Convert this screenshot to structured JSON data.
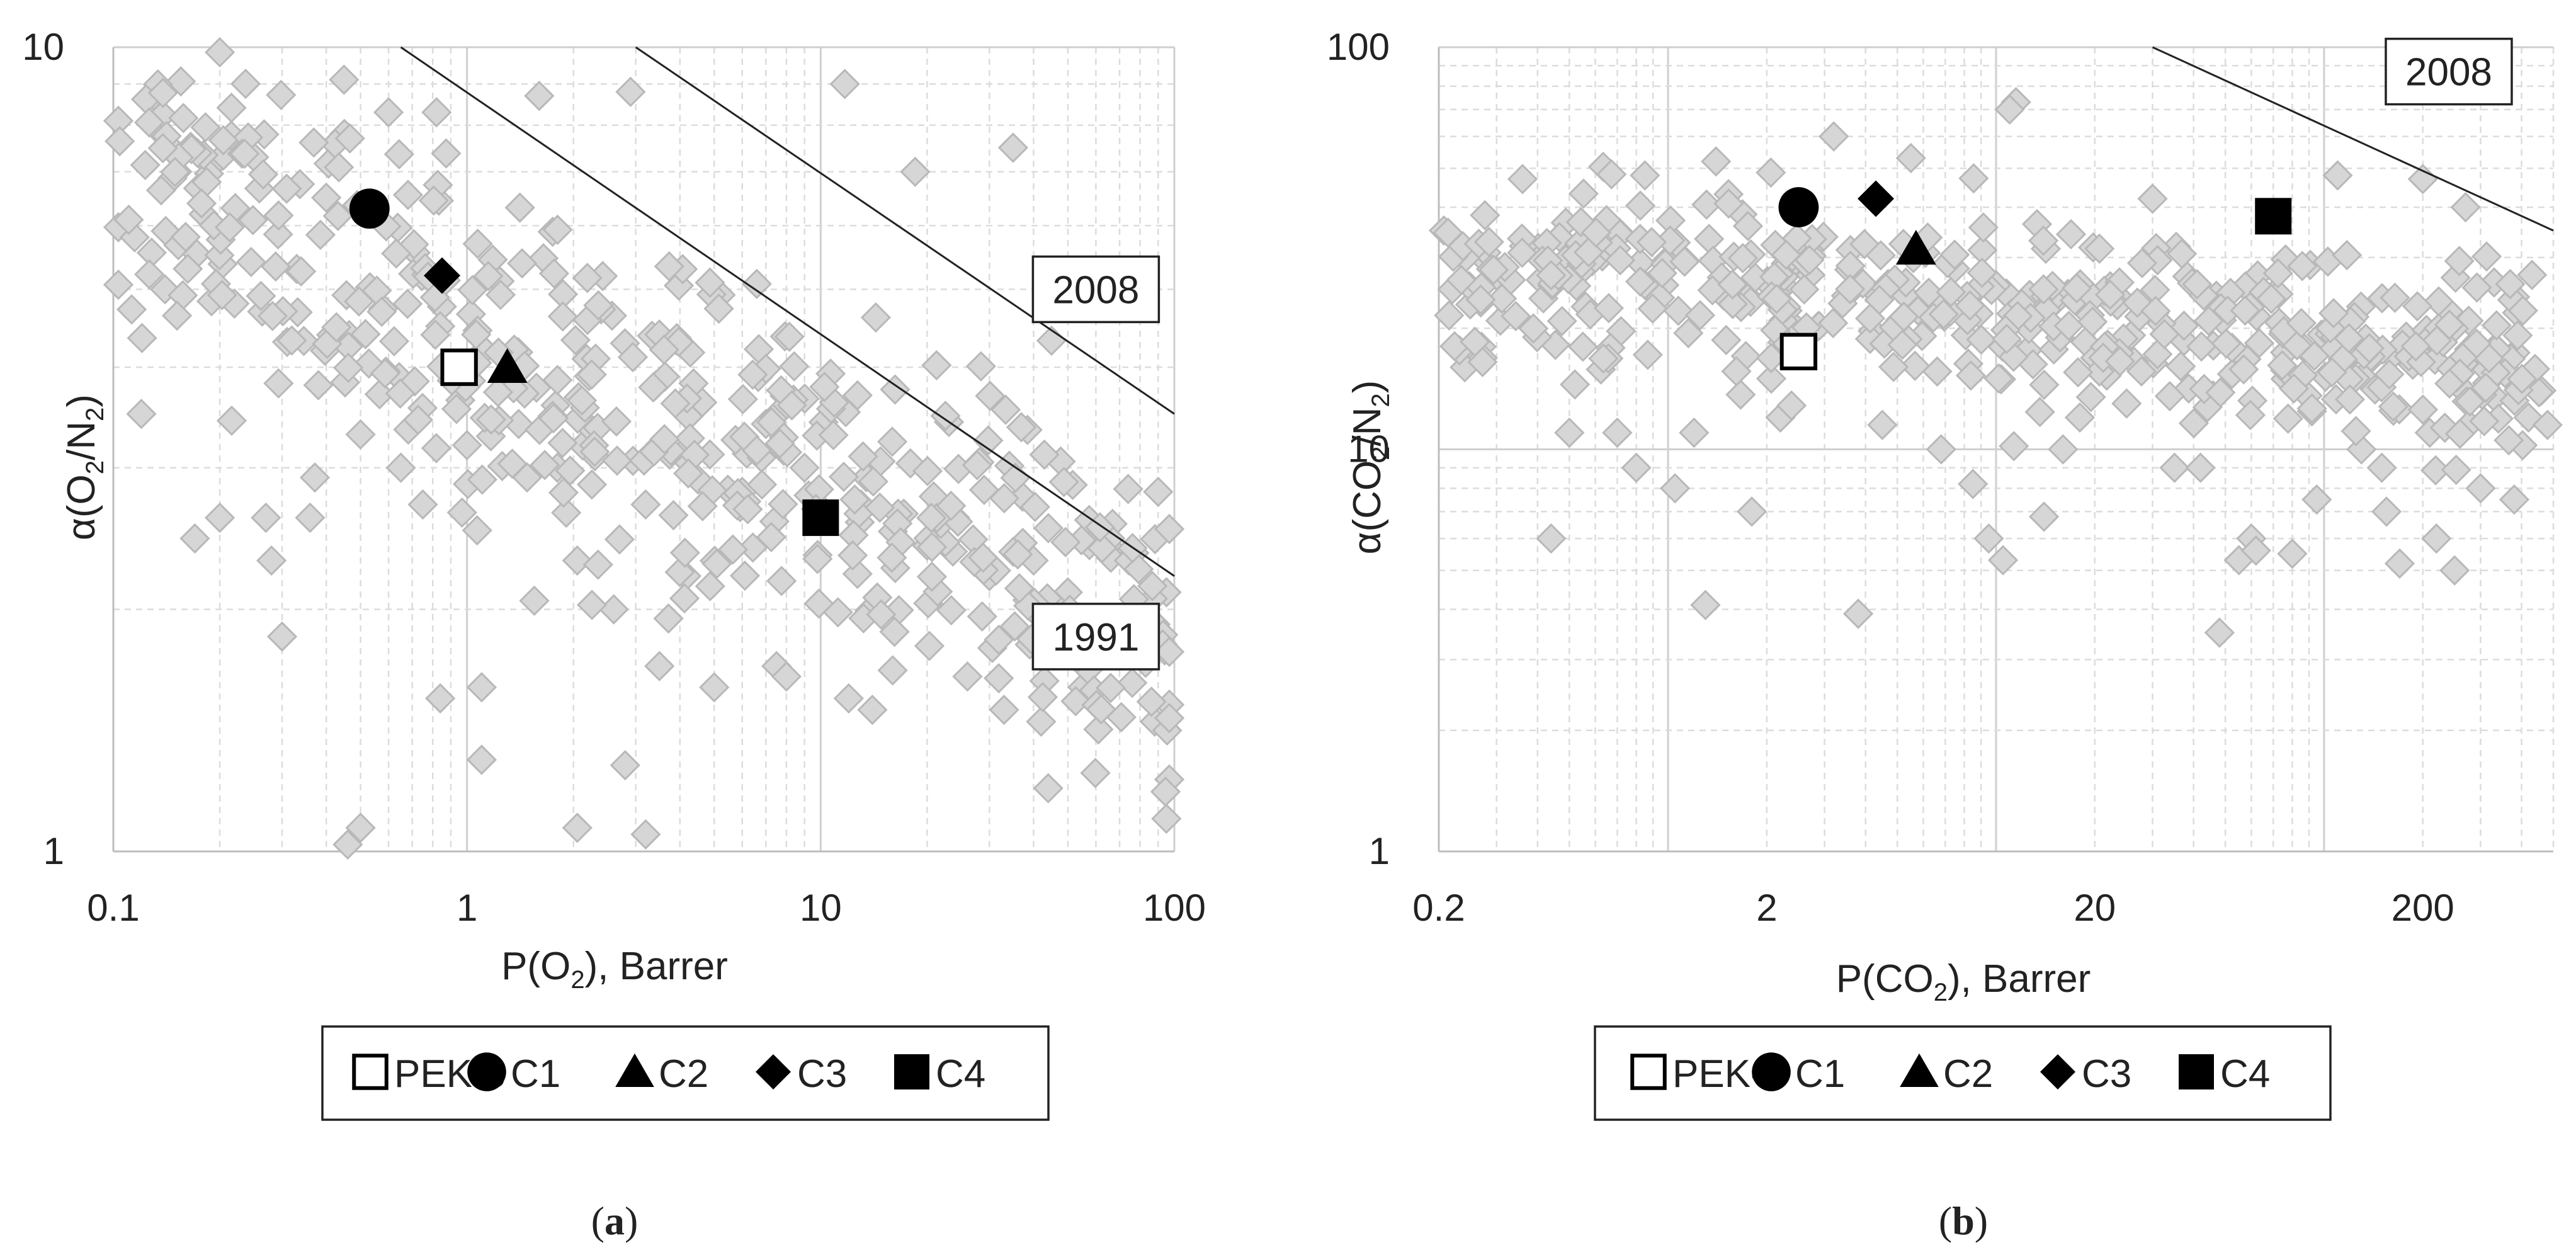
{
  "chart_data": [
    {
      "type": "scatter",
      "panel_label": "a",
      "xlabel_parts": [
        "P(O",
        "2",
        "), Barrer"
      ],
      "ylabel_parts": [
        "α(O",
        "2",
        "/N",
        "2",
        ")"
      ],
      "x_log": true,
      "y_log": true,
      "xlim": [
        0.1,
        100
      ],
      "ylim": [
        1,
        10
      ],
      "x_ticks": [
        {
          "v": 0.1,
          "label": "0.1"
        },
        {
          "v": 1,
          "label": "1"
        },
        {
          "v": 10,
          "label": "10"
        },
        {
          "v": 100,
          "label": "100"
        }
      ],
      "y_ticks": [
        {
          "v": 1,
          "label": "1"
        },
        {
          "v": 10,
          "label": "10"
        }
      ],
      "grid": true,
      "legend_position": "bottom",
      "legend": [
        {
          "label": "PEK-c",
          "marker": "square-open"
        },
        {
          "label": "C1",
          "marker": "circle"
        },
        {
          "label": "C2",
          "marker": "triangle"
        },
        {
          "label": "C3",
          "marker": "diamond"
        },
        {
          "label": "C4",
          "marker": "square"
        }
      ],
      "series": [
        {
          "name": "PEK-c",
          "marker": "square-open",
          "points": [
            [
              0.95,
              4.0
            ]
          ]
        },
        {
          "name": "C1",
          "marker": "circle",
          "points": [
            [
              0.53,
              6.3
            ]
          ]
        },
        {
          "name": "C2",
          "marker": "triangle",
          "points": [
            [
              1.3,
              4.0
            ]
          ]
        },
        {
          "name": "C3",
          "marker": "diamond",
          "points": [
            [
              0.85,
              5.2
            ]
          ]
        },
        {
          "name": "C4",
          "marker": "square",
          "points": [
            [
              10,
              2.6
            ]
          ]
        }
      ],
      "upper_bounds": [
        {
          "label": "2008",
          "points": [
            [
              3.0,
              10
            ],
            [
              100,
              3.5
            ]
          ],
          "label_at": [
            60,
            5.0
          ]
        },
        {
          "label": "1991",
          "points": [
            [
              0.65,
              10
            ],
            [
              100,
              2.2
            ]
          ],
          "label_at": [
            60,
            1.85
          ]
        }
      ],
      "background_color": "#d6d6d6",
      "background_generator": {
        "x": [
          0.1,
          100
        ],
        "y_center": 3.6,
        "slope": -0.2,
        "seed": 11
      },
      "background_points": [
        [
          0.1,
          8.1
        ],
        [
          0.13,
          8.7
        ],
        [
          0.2,
          10
        ],
        [
          0.25,
          7.3
        ],
        [
          0.45,
          7.8
        ],
        [
          0.6,
          8.3
        ],
        [
          0.82,
          8.3
        ],
        [
          1.6,
          8.7
        ],
        [
          2.9,
          8.8
        ],
        [
          11.7,
          9.0
        ],
        [
          35,
          7.5
        ],
        [
          18.5,
          7.0
        ],
        [
          0.14,
          5.0
        ],
        [
          0.12,
          3.5
        ],
        [
          0.17,
          2.45
        ],
        [
          0.2,
          2.6
        ],
        [
          0.27,
          2.6
        ],
        [
          0.36,
          2.6
        ],
        [
          0.28,
          2.3
        ],
        [
          0.3,
          1.85
        ],
        [
          0.75,
          2.7
        ],
        [
          0.84,
          1.55
        ],
        [
          1.1,
          1.6
        ],
        [
          1.55,
          2.05
        ],
        [
          2.05,
          2.3
        ],
        [
          2.6,
          2.0
        ],
        [
          3.2,
          2.7
        ],
        [
          3.5,
          1.7
        ],
        [
          5.0,
          1.6
        ],
        [
          7.5,
          1.7
        ],
        [
          8.0,
          1.65
        ],
        [
          1.1,
          1.3
        ],
        [
          2.8,
          1.28
        ],
        [
          2.05,
          1.07
        ],
        [
          3.2,
          1.05
        ],
        [
          0.5,
          1.07
        ],
        [
          0.46,
          1.02
        ],
        [
          12,
          1.55
        ],
        [
          14,
          1.5
        ],
        [
          26,
          1.65
        ],
        [
          33,
          1.5
        ],
        [
          42,
          1.45
        ],
        [
          55,
          1.6
        ],
        [
          70,
          1.75
        ],
        [
          88,
          1.45
        ],
        [
          95,
          2.1
        ],
        [
          90,
          2.8
        ],
        [
          75,
          2.0
        ],
        [
          0.4,
          6.5
        ],
        [
          0.33,
          5.3
        ],
        [
          0.22,
          4.8
        ],
        [
          0.18,
          6.2
        ],
        [
          0.31,
          4.3
        ],
        [
          0.38,
          3.8
        ],
        [
          0.5,
          3.3
        ],
        [
          0.65,
          3.0
        ],
        [
          1.0,
          3.2
        ],
        [
          1.4,
          3.4
        ],
        [
          1.8,
          3.0
        ],
        [
          2.3,
          3.1
        ],
        [
          3.5,
          3.2
        ],
        [
          4.5,
          2.9
        ],
        [
          6.0,
          2.8
        ],
        [
          7.0,
          3.4
        ],
        [
          9.0,
          3.0
        ],
        [
          13,
          2.7
        ],
        [
          16,
          2.5
        ],
        [
          20,
          2.4
        ],
        [
          24,
          2.6
        ],
        [
          30,
          2.2
        ],
        [
          40,
          2.3
        ],
        [
          50,
          2.1
        ],
        [
          65,
          2.4
        ]
      ]
    },
    {
      "type": "scatter",
      "panel_label": "b",
      "xlabel_parts": [
        "P(CO",
        "2",
        "), Barrer"
      ],
      "ylabel_parts": [
        "α(CO",
        "2",
        "/N",
        "2",
        ")"
      ],
      "x_log": true,
      "y_log": true,
      "xlim": [
        0.2,
        500
      ],
      "ylim": [
        1,
        100
      ],
      "x_ticks": [
        {
          "v": 0.2,
          "label": "0.2"
        },
        {
          "v": 2,
          "label": "2"
        },
        {
          "v": 20,
          "label": "20"
        },
        {
          "v": 200,
          "label": "200"
        }
      ],
      "y_ticks": [
        {
          "v": 1,
          "label": "1"
        },
        {
          "v": 10,
          "label": "10"
        },
        {
          "v": 100,
          "label": "100"
        }
      ],
      "grid": true,
      "legend_position": "bottom",
      "legend": [
        {
          "label": "PEK-c",
          "marker": "square-open"
        },
        {
          "label": "C1",
          "marker": "circle"
        },
        {
          "label": "C2",
          "marker": "triangle"
        },
        {
          "label": "C3",
          "marker": "diamond"
        },
        {
          "label": "C4",
          "marker": "square"
        }
      ],
      "series": [
        {
          "name": "PEK-c",
          "marker": "square-open",
          "points": [
            [
              2.5,
              17.5
            ]
          ]
        },
        {
          "name": "C1",
          "marker": "circle",
          "points": [
            [
              2.5,
              40
            ]
          ]
        },
        {
          "name": "C2",
          "marker": "triangle",
          "points": [
            [
              5.7,
              31.5
            ]
          ]
        },
        {
          "name": "C3",
          "marker": "diamond",
          "points": [
            [
              4.3,
              42
            ]
          ]
        },
        {
          "name": "C4",
          "marker": "square",
          "points": [
            [
              70,
              38
            ]
          ]
        }
      ],
      "upper_bounds": [
        {
          "label": "2008",
          "points": [
            [
              30,
              100
            ],
            [
              500,
              35
            ]
          ],
          "label_at": [
            240,
            87
          ]
        }
      ],
      "background_color": "#d6d6d6",
      "background_generator": {
        "x": [
          0.2,
          500
        ],
        "y_center": 22,
        "slope": -0.08,
        "seed": 29
      },
      "background_points": [
        [
          0.2,
          35
        ],
        [
          0.22,
          25
        ],
        [
          0.24,
          16
        ],
        [
          0.27,
          18
        ],
        [
          0.3,
          27
        ],
        [
          0.36,
          47
        ],
        [
          0.44,
          6.0
        ],
        [
          0.5,
          11
        ],
        [
          0.52,
          14.5
        ],
        [
          0.55,
          18
        ],
        [
          0.7,
          11
        ],
        [
          0.8,
          9.0
        ],
        [
          0.85,
          48
        ],
        [
          1.05,
          8.0
        ],
        [
          1.2,
          11
        ],
        [
          1.3,
          4.1
        ],
        [
          1.4,
          52
        ],
        [
          1.8,
          7.0
        ],
        [
          2.2,
          12
        ],
        [
          3.2,
          60
        ],
        [
          3.8,
          3.9
        ],
        [
          4.5,
          11.5
        ],
        [
          5.5,
          53
        ],
        [
          6.8,
          10
        ],
        [
          8.5,
          8.2
        ],
        [
          9.5,
          6.0
        ],
        [
          10.5,
          5.3
        ],
        [
          11.5,
          73
        ],
        [
          11,
          70
        ],
        [
          14,
          6.8
        ],
        [
          16,
          10
        ],
        [
          18,
          12
        ],
        [
          25,
          13
        ],
        [
          30,
          42
        ],
        [
          35,
          9.0
        ],
        [
          42,
          9.0
        ],
        [
          48,
          3.5
        ],
        [
          55,
          5.3
        ],
        [
          60,
          6.0
        ],
        [
          62,
          5.6
        ],
        [
          80,
          5.5
        ],
        [
          95,
          7.5
        ],
        [
          110,
          48
        ],
        [
          130,
          10
        ],
        [
          150,
          9.0
        ],
        [
          155,
          7.0
        ],
        [
          170,
          5.2
        ],
        [
          200,
          47
        ],
        [
          210,
          11
        ],
        [
          220,
          6.0
        ],
        [
          250,
          5.0
        ],
        [
          270,
          40
        ],
        [
          300,
          8.0
        ],
        [
          330,
          26
        ],
        [
          350,
          17
        ],
        [
          380,
          7.5
        ],
        [
          420,
          12
        ],
        [
          460,
          14
        ],
        [
          480,
          11.5
        ]
      ]
    }
  ]
}
